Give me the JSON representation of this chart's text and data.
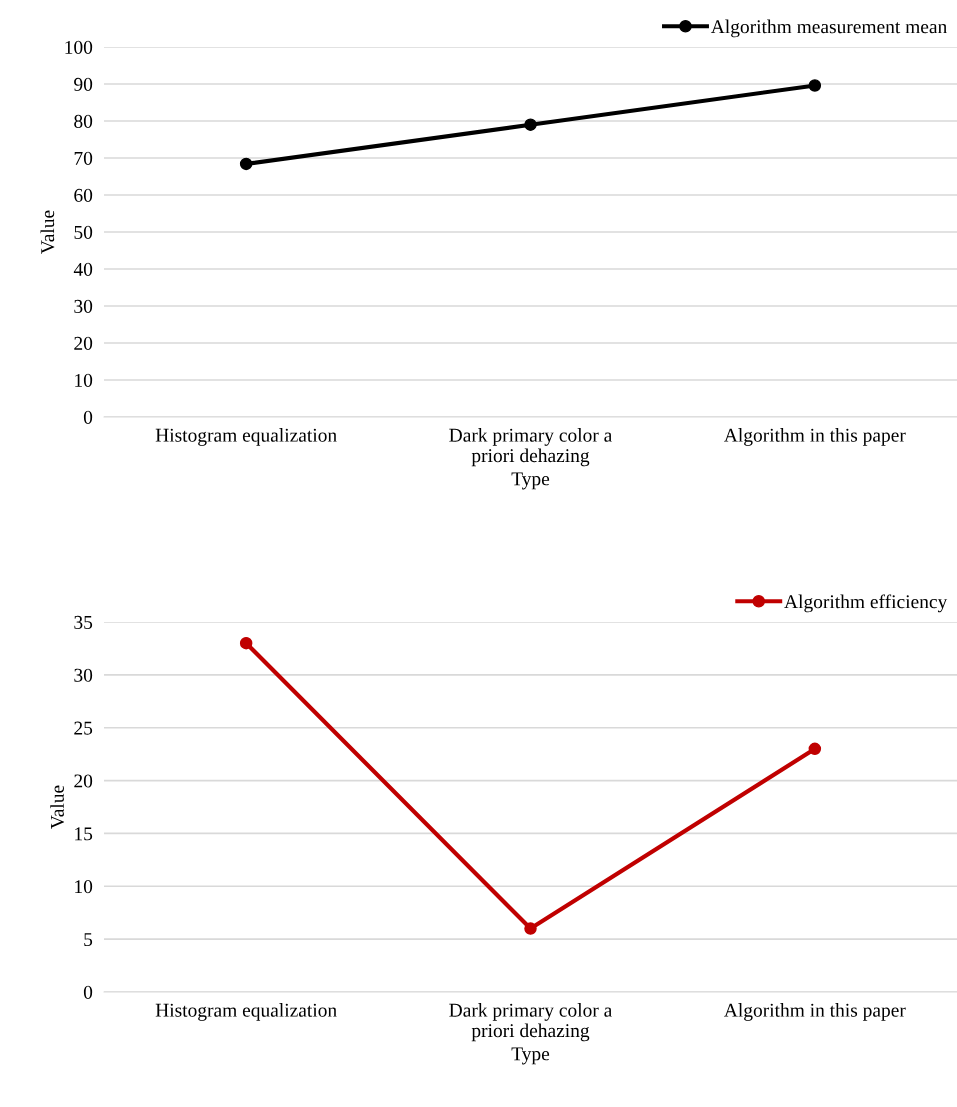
{
  "chart_data": [
    {
      "type": "line",
      "xlabel": "Type",
      "ylabel": "Value",
      "categories": [
        "Histogram equalization",
        "Dark primary color a\npriori dehazing",
        "Algorithm in this paper"
      ],
      "series": [
        {
          "name": "Algorithm measurement mean",
          "color": "#000000",
          "values": [
            68.4,
            79,
            89.6
          ]
        }
      ],
      "ylim": [
        0,
        100
      ],
      "yticks": [
        0,
        10,
        20,
        30,
        40,
        50,
        60,
        70,
        80,
        90,
        100
      ],
      "grid": "y",
      "legend": "top right",
      "marker": "circle",
      "line_style": "solid"
    },
    {
      "type": "line",
      "xlabel": "Type",
      "ylabel": "Value",
      "categories": [
        "Histogram equalization",
        "Dark primary color a\npriori dehazing",
        "Algorithm in this paper"
      ],
      "series": [
        {
          "name": "Algorithm efficiency",
          "color": "#c00000",
          "values": [
            33,
            6,
            23
          ]
        }
      ],
      "ylim": [
        0,
        35
      ],
      "yticks": [
        0,
        5,
        10,
        15,
        20,
        25,
        30,
        35
      ],
      "grid": "y",
      "legend": "top right",
      "marker": "circle",
      "line_style": "solid"
    }
  ]
}
